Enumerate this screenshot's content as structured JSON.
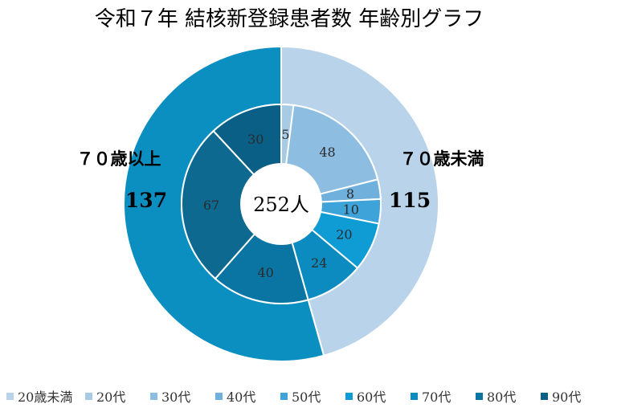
{
  "chart_data": {
    "type": "pie",
    "title": "令和７年 結核新登録患者数 年齢別グラフ",
    "center_label": "252人",
    "outer": {
      "series": [
        {
          "name": "７０歳未満",
          "value": 115,
          "color": "#b8d3ea"
        },
        {
          "name": "７０歳以上",
          "value": 137,
          "color": "#0b8fc1"
        }
      ]
    },
    "inner": {
      "categories": [
        "20歳未満",
        "20代",
        "30代",
        "40代",
        "50代",
        "60代",
        "70代",
        "80代",
        "90代"
      ],
      "values": [
        5,
        48,
        8,
        10,
        20,
        24,
        40,
        67,
        30
      ],
      "colors": [
        "#a8cbe5",
        "#8dbde0",
        "#6fb0dc",
        "#3ea3d8",
        "#0f9bd4",
        "#0c8bc0",
        "#0a74a3",
        "#0d6990",
        "#0a5f86"
      ]
    },
    "legend": {
      "position": "bottom",
      "items": [
        "20歳未満",
        "20代",
        "30代",
        "40代",
        "50代",
        "60代",
        "70代",
        "80代",
        "90代"
      ],
      "colors": [
        "#b8d3ea",
        "#a8cbe5",
        "#8dbde0",
        "#6fb0dc",
        "#3ea3d8",
        "#0f9bd4",
        "#0c8bc0",
        "#0a74a3",
        "#0a5f86"
      ]
    }
  }
}
